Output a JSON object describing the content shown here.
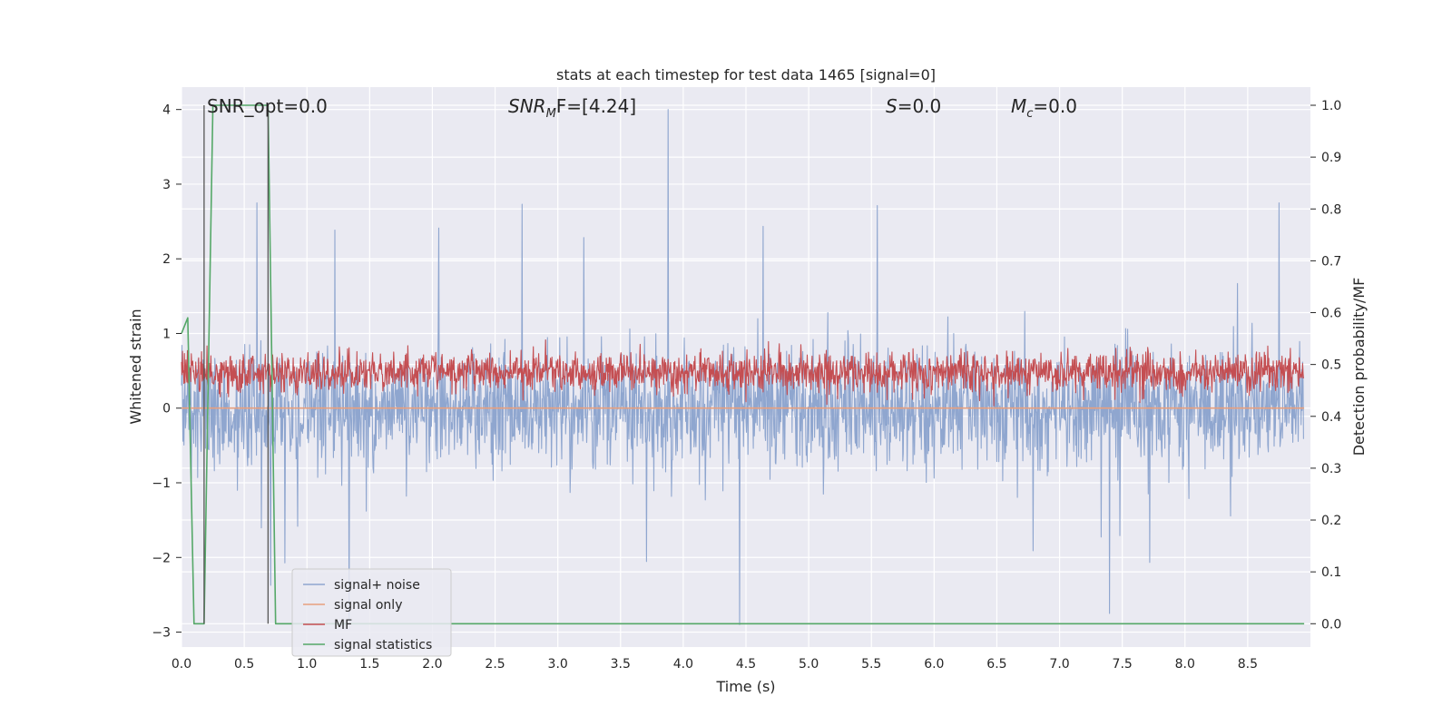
{
  "chart_data": {
    "type": "line",
    "title": "stats at each timestep for test data 1465 [signal=0]",
    "xlabel": "Time (s)",
    "ylabel_left": "Whitened strain",
    "ylabel_right": "Detection probability/MF",
    "xlim": [
      0.0,
      9.0
    ],
    "ylim_left": [
      -3.2,
      4.3
    ],
    "ylim_right": [
      -0.045,
      1.035
    ],
    "grid": true,
    "background": "#eaeaf2",
    "x_ticks": [
      "0.0",
      "0.5",
      "1.0",
      "1.5",
      "2.0",
      "2.5",
      "3.0",
      "3.5",
      "4.0",
      "4.5",
      "5.0",
      "5.5",
      "6.0",
      "6.5",
      "7.0",
      "7.5",
      "8.0",
      "8.5"
    ],
    "y_left_ticks": [
      "4",
      "3",
      "2",
      "1",
      "0",
      "−1",
      "−2",
      "−3"
    ],
    "y_right_ticks": [
      "1.0",
      "0.9",
      "0.8",
      "0.7",
      "0.6",
      "0.5",
      "0.4",
      "0.3",
      "0.2",
      "0.1",
      "0.0"
    ],
    "annotations": {
      "snr_opt": "SNR_opt=0.0",
      "snr_mf_base": "SNR",
      "snr_mf_sub": "M",
      "snr_mf_rest": "F=[4.24]",
      "s_italic": "S",
      "s_rest": "=0.0",
      "mc_base": "M",
      "mc_sub": "c",
      "mc_rest": "=0.0"
    },
    "legend_position": "lower-left",
    "series": [
      {
        "name": "signal+ noise",
        "color": "#8fa6cf",
        "axis": "left",
        "kind": "noise",
        "sample_rate_hz": 256,
        "approx_range": [
          -2.9,
          4.0
        ],
        "peaks": [
          [
            3.88,
            4.0
          ],
          [
            4.45,
            -2.9
          ],
          [
            7.4,
            -2.75
          ],
          [
            0.6,
            2.75
          ],
          [
            8.75,
            2.75
          ]
        ]
      },
      {
        "name": "signal only",
        "color": "#e8a07e",
        "axis": "left",
        "kind": "constant",
        "value": 0.0
      },
      {
        "name": "MF",
        "color": "#c44e52",
        "axis": "right",
        "kind": "noise",
        "sample_rate_hz": 256,
        "approx_range": [
          0.42,
          0.55
        ]
      },
      {
        "name": "signal statistics",
        "color": "#55a868",
        "axis": "right",
        "x": [
          0.0,
          0.05,
          0.1,
          0.18,
          0.25,
          0.69,
          0.75,
          8.95
        ],
        "y": [
          0.56,
          0.59,
          0.0,
          0.0,
          1.0,
          1.0,
          0.0,
          0.0
        ]
      }
    ],
    "vertical_lines": [
      {
        "x": 0.18,
        "y_from": 0.0,
        "y_to": 1.0,
        "color": "#555555"
      },
      {
        "x": 0.69,
        "y_from": 0.0,
        "y_to": 1.0,
        "color": "#555555"
      }
    ]
  }
}
